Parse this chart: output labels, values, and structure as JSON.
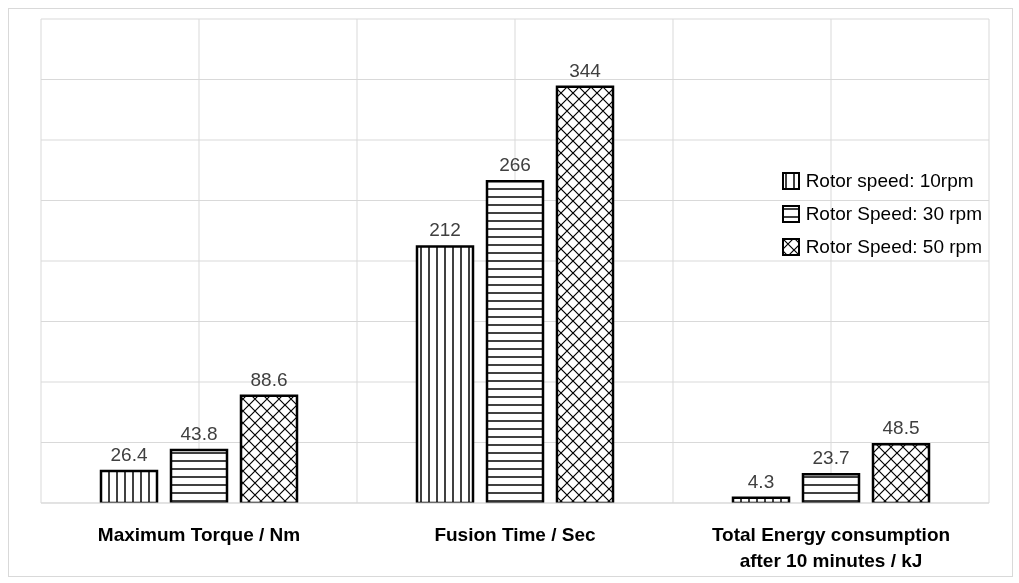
{
  "chart_data": {
    "type": "bar",
    "categories": [
      "Maximum Torque / Nm",
      "Fusion Time / Sec",
      "Total Energy consumption after 10 minutes / kJ"
    ],
    "series": [
      {
        "name": "Rotor speed: 10rpm",
        "color": "#000000",
        "values": [
          26.4,
          212,
          4.3
        ]
      },
      {
        "name": "Rotor Speed: 30 rpm",
        "color": "#000000",
        "values": [
          43.8,
          266,
          23.7
        ]
      },
      {
        "name": "Rotor Speed: 50 rpm",
        "color": "#000000",
        "values": [
          88.6,
          344,
          48.5
        ]
      }
    ],
    "ylim": [
      0,
      400
    ],
    "tick_labels": "x",
    "grid": true,
    "legend": "top right",
    "data_labels": true
  }
}
